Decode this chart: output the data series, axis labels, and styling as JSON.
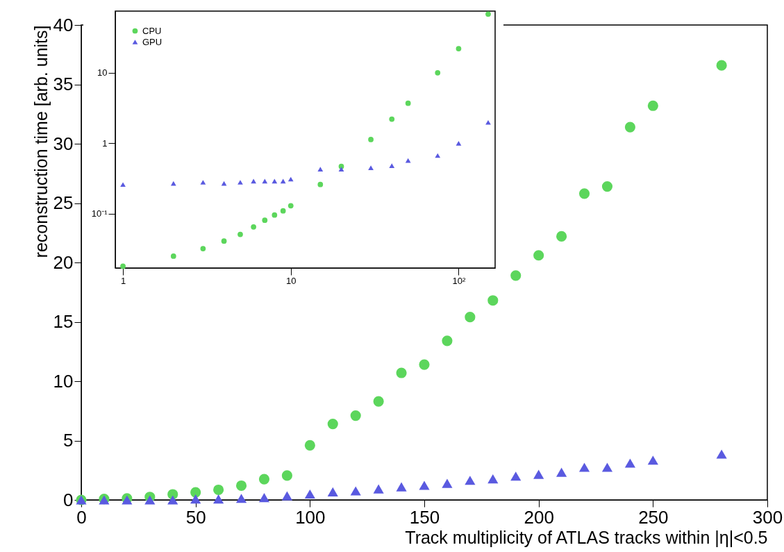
{
  "chart_data": [
    {
      "type": "scatter",
      "xlabel": "Track multiplicity of ATLAS tracks within |η|<0.5",
      "ylabel": "reconstruction time [arb. units]",
      "x": [
        0,
        10,
        20,
        30,
        40,
        50,
        60,
        70,
        80,
        90,
        100,
        110,
        120,
        130,
        140,
        150,
        160,
        170,
        180,
        190,
        200,
        210,
        220,
        230,
        240,
        250,
        280
      ],
      "series": [
        {
          "color": "#5cd65c",
          "marker": "circle",
          "values": [
            0,
            0.08,
            0.13,
            0.25,
            0.47,
            0.64,
            0.85,
            1.2,
            1.75,
            2.05,
            4.6,
            6.4,
            7.1,
            8.3,
            10.7,
            11.4,
            13.4,
            15.4,
            16.8,
            18.9,
            20.6,
            22.2,
            25.8,
            26.4,
            31.4,
            33.2,
            36.6
          ]
        },
        {
          "color": "#5a5ae0",
          "marker": "triangle",
          "values": [
            0,
            0,
            0,
            0,
            0,
            0.08,
            0.08,
            0.13,
            0.2,
            0.34,
            0.5,
            0.68,
            0.76,
            0.93,
            1.1,
            1.23,
            1.4,
            1.65,
            1.78,
            2.0,
            2.16,
            2.33,
            2.75,
            2.75,
            3.1,
            3.35,
            3.86
          ]
        }
      ],
      "xlim": [
        0,
        300
      ],
      "xticks": [
        0,
        50,
        100,
        150,
        200,
        250,
        300
      ],
      "ylim": [
        0,
        40
      ],
      "yticks": [
        0,
        5,
        10,
        15,
        20,
        25,
        30,
        35,
        40
      ],
      "grid": false
    },
    {
      "type": "scatter",
      "x": [
        1,
        2,
        3,
        4,
        5,
        6,
        7,
        8,
        9,
        10,
        15,
        20,
        30,
        40,
        50,
        75,
        100,
        150
      ],
      "log": "xy",
      "legend": "top left",
      "series": [
        {
          "name": "CPU",
          "color": "#5cd65c",
          "marker": "circle",
          "values": [
            0.018,
            0.025,
            0.032,
            0.041,
            0.051,
            0.065,
            0.081,
            0.096,
            0.11,
            0.13,
            0.26,
            0.47,
            1.13,
            2.2,
            3.7,
            10,
            22,
            68
          ]
        },
        {
          "name": "GPU",
          "color": "#5a5ae0",
          "marker": "triangle",
          "values": [
            0.26,
            0.27,
            0.28,
            0.27,
            0.28,
            0.29,
            0.29,
            0.29,
            0.29,
            0.31,
            0.43,
            0.43,
            0.45,
            0.48,
            0.57,
            0.67,
            1.0,
            1.98
          ]
        }
      ],
      "xlim": [
        0.9,
        165
      ],
      "xticks": [
        1,
        10,
        {
          "value": 100,
          "label": "10²"
        }
      ],
      "ylim": [
        0.017,
        75
      ],
      "yticks": [
        {
          "value": 0.1,
          "label": "10⁻¹"
        },
        1,
        10
      ],
      "grid": false
    }
  ]
}
